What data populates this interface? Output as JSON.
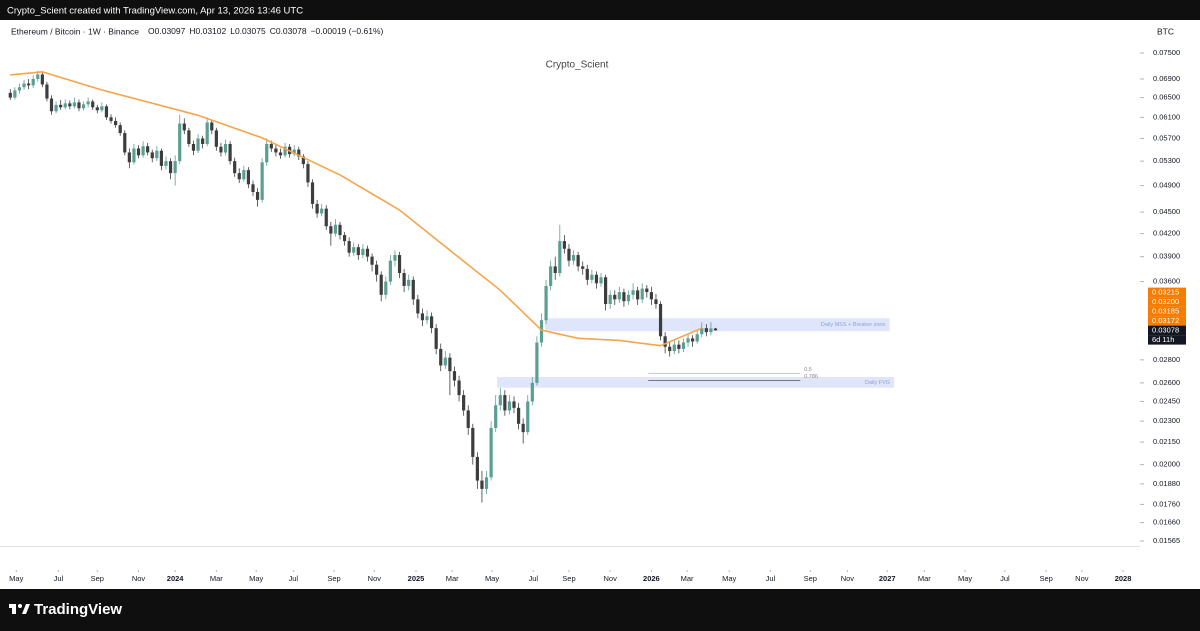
{
  "header": {
    "credit": "Crypto_Scient created with TradingView.com, Apr 13, 2026 13:46 UTC",
    "symbol": "Ethereum / Bitcoin · 1W · Binance",
    "legend": [
      {
        "key": "O",
        "value": "0.03097"
      },
      {
        "key": "H",
        "value": "0.03102"
      },
      {
        "key": "L",
        "value": "0.03075"
      },
      {
        "key": "C",
        "value": "0.03078"
      }
    ],
    "change": "−0.00019 (−0.61%)",
    "currency": "BTC",
    "watermark": "Crypto_Scient"
  },
  "footer": {
    "brand": "TradingView"
  },
  "chart_data": {
    "type": "candlestick",
    "log_scale": true,
    "up_color": "#5b9e92",
    "down_color": "#3d3d3d",
    "xlim": [
      -0.5,
      246.7
    ],
    "xticks": [
      {
        "value": 1.3,
        "label": "May"
      },
      {
        "value": 10.5,
        "label": "Jul"
      },
      {
        "value": 19,
        "label": "Sep"
      },
      {
        "value": 28,
        "label": "Nov"
      },
      {
        "value": 36,
        "label": "2024"
      },
      {
        "value": 45,
        "label": "Mar"
      },
      {
        "value": 53.7,
        "label": "May"
      },
      {
        "value": 61.8,
        "label": "Jul"
      },
      {
        "value": 70.7,
        "label": "Sep"
      },
      {
        "value": 79.5,
        "label": "Nov"
      },
      {
        "value": 88.6,
        "label": "2025"
      },
      {
        "value": 96.5,
        "label": "Mar"
      },
      {
        "value": 105.2,
        "label": "May"
      },
      {
        "value": 114.2,
        "label": "Jul"
      },
      {
        "value": 122,
        "label": "Sep"
      },
      {
        "value": 131,
        "label": "Nov"
      },
      {
        "value": 140,
        "label": "2026"
      },
      {
        "value": 147.8,
        "label": "Mar"
      },
      {
        "value": 157,
        "label": "May"
      },
      {
        "value": 166,
        "label": "Jul"
      },
      {
        "value": 174.7,
        "label": "Sep"
      },
      {
        "value": 182.8,
        "label": "Nov"
      },
      {
        "value": 191.5,
        "label": "2027"
      },
      {
        "value": 199.6,
        "label": "Mar"
      },
      {
        "value": 208.5,
        "label": "May"
      },
      {
        "value": 217.2,
        "label": "Jul"
      },
      {
        "value": 226.2,
        "label": "Sep"
      },
      {
        "value": 234,
        "label": "Nov"
      },
      {
        "value": 243,
        "label": "2028"
      }
    ],
    "ylim": [
      0.0154,
      0.0777
    ],
    "yticks": [
      {
        "value": 0.075,
        "label": "0.07500"
      },
      {
        "value": 0.069,
        "label": "0.06900"
      },
      {
        "value": 0.065,
        "label": "0.06500"
      },
      {
        "value": 0.061,
        "label": "0.06100"
      },
      {
        "value": 0.057,
        "label": "0.05700"
      },
      {
        "value": 0.053,
        "label": "0.05300"
      },
      {
        "value": 0.049,
        "label": "0.04900"
      },
      {
        "value": 0.045,
        "label": "0.04500"
      },
      {
        "value": 0.042,
        "label": "0.04200"
      },
      {
        "value": 0.039,
        "label": "0.03900"
      },
      {
        "value": 0.036,
        "label": "0.03600"
      },
      {
        "value": 0.028,
        "label": "0.02800"
      },
      {
        "value": 0.026,
        "label": "0.02600"
      },
      {
        "value": 0.0245,
        "label": "0.02450"
      },
      {
        "value": 0.023,
        "label": "0.02300"
      },
      {
        "value": 0.0215,
        "label": "0.02150"
      },
      {
        "value": 0.02,
        "label": "0.02000"
      },
      {
        "value": 0.0188,
        "label": "0.01880"
      },
      {
        "value": 0.0176,
        "label": "0.01760"
      },
      {
        "value": 0.0166,
        "label": "0.01660"
      },
      {
        "value": 0.01565,
        "label": "0.01565"
      }
    ],
    "ohlc": [
      [
        0.066,
        0.0668,
        0.0645,
        0.065
      ],
      [
        0.065,
        0.0672,
        0.0646,
        0.0665
      ],
      [
        0.0665,
        0.068,
        0.0658,
        0.0672
      ],
      [
        0.0672,
        0.0688,
        0.0666,
        0.068
      ],
      [
        0.068,
        0.069,
        0.0668,
        0.0676
      ],
      [
        0.0676,
        0.0698,
        0.067,
        0.069
      ],
      [
        0.069,
        0.0708,
        0.0684,
        0.07
      ],
      [
        0.07,
        0.0705,
        0.0672,
        0.0678
      ],
      [
        0.0678,
        0.0684,
        0.0642,
        0.0648
      ],
      [
        0.0648,
        0.0655,
        0.0615,
        0.0622
      ],
      [
        0.0622,
        0.0642,
        0.0618,
        0.0635
      ],
      [
        0.0635,
        0.0645,
        0.0625,
        0.063
      ],
      [
        0.063,
        0.0646,
        0.0626,
        0.0638
      ],
      [
        0.0638,
        0.0644,
        0.0626,
        0.0632
      ],
      [
        0.0632,
        0.065,
        0.0628,
        0.064
      ],
      [
        0.064,
        0.0646,
        0.0622,
        0.0628
      ],
      [
        0.0628,
        0.0642,
        0.0624,
        0.0636
      ],
      [
        0.0636,
        0.065,
        0.063,
        0.0642
      ],
      [
        0.0642,
        0.0646,
        0.0625,
        0.063
      ],
      [
        0.063,
        0.0635,
        0.0618,
        0.0624
      ],
      [
        0.0624,
        0.064,
        0.062,
        0.0632
      ],
      [
        0.0632,
        0.0636,
        0.0605,
        0.061
      ],
      [
        0.061,
        0.0616,
        0.0598,
        0.0603
      ],
      [
        0.0603,
        0.061,
        0.059,
        0.0595
      ],
      [
        0.0595,
        0.06,
        0.0575,
        0.058
      ],
      [
        0.058,
        0.0585,
        0.054,
        0.0545
      ],
      [
        0.0545,
        0.0552,
        0.0518,
        0.0528
      ],
      [
        0.0528,
        0.056,
        0.0524,
        0.0552
      ],
      [
        0.0552,
        0.0558,
        0.0535,
        0.054
      ],
      [
        0.054,
        0.0565,
        0.0536,
        0.0556
      ],
      [
        0.0556,
        0.0562,
        0.054,
        0.0545
      ],
      [
        0.0545,
        0.055,
        0.0528,
        0.0535
      ],
      [
        0.0535,
        0.0556,
        0.053,
        0.0548
      ],
      [
        0.0548,
        0.0552,
        0.0515,
        0.0522
      ],
      [
        0.0522,
        0.0538,
        0.0516,
        0.053
      ],
      [
        0.053,
        0.0535,
        0.05,
        0.051
      ],
      [
        0.051,
        0.054,
        0.049,
        0.053
      ],
      [
        0.053,
        0.0615,
        0.0525,
        0.0598
      ],
      [
        0.0598,
        0.0608,
        0.0578,
        0.0585
      ],
      [
        0.0585,
        0.059,
        0.0555,
        0.056
      ],
      [
        0.056,
        0.0566,
        0.054,
        0.0548
      ],
      [
        0.0548,
        0.0578,
        0.0544,
        0.057
      ],
      [
        0.057,
        0.0575,
        0.0552,
        0.056
      ],
      [
        0.056,
        0.061,
        0.0556,
        0.06
      ],
      [
        0.06,
        0.0606,
        0.0578,
        0.0585
      ],
      [
        0.0585,
        0.059,
        0.0548,
        0.0555
      ],
      [
        0.0555,
        0.0562,
        0.0538,
        0.0545
      ],
      [
        0.0545,
        0.0568,
        0.054,
        0.056
      ],
      [
        0.056,
        0.0565,
        0.0524,
        0.053
      ],
      [
        0.053,
        0.0536,
        0.0504,
        0.051
      ],
      [
        0.051,
        0.0518,
        0.0494,
        0.05
      ],
      [
        0.05,
        0.0522,
        0.0496,
        0.0515
      ],
      [
        0.0515,
        0.052,
        0.0486,
        0.0492
      ],
      [
        0.0492,
        0.0498,
        0.0474,
        0.048
      ],
      [
        0.048,
        0.0486,
        0.0458,
        0.0468
      ],
      [
        0.0468,
        0.0535,
        0.0464,
        0.0528
      ],
      [
        0.0528,
        0.057,
        0.0522,
        0.056
      ],
      [
        0.056,
        0.0566,
        0.0546,
        0.0552
      ],
      [
        0.0552,
        0.0558,
        0.0538,
        0.0545
      ],
      [
        0.0545,
        0.0552,
        0.0534,
        0.054
      ],
      [
        0.054,
        0.0562,
        0.0536,
        0.0555
      ],
      [
        0.0555,
        0.056,
        0.0536,
        0.0542
      ],
      [
        0.0542,
        0.0558,
        0.0538,
        0.055
      ],
      [
        0.055,
        0.0555,
        0.0532,
        0.0538
      ],
      [
        0.0538,
        0.0542,
        0.0518,
        0.0525
      ],
      [
        0.0525,
        0.053,
        0.0488,
        0.0495
      ],
      [
        0.0495,
        0.05,
        0.0455,
        0.0462
      ],
      [
        0.0462,
        0.0468,
        0.0442,
        0.0448
      ],
      [
        0.0448,
        0.0462,
        0.0444,
        0.0455
      ],
      [
        0.0455,
        0.046,
        0.0425,
        0.043
      ],
      [
        0.043,
        0.0436,
        0.0404,
        0.042
      ],
      [
        0.042,
        0.044,
        0.0416,
        0.0432
      ],
      [
        0.0432,
        0.0436,
        0.0412,
        0.0418
      ],
      [
        0.0418,
        0.0422,
        0.0404,
        0.041
      ],
      [
        0.041,
        0.0415,
        0.039,
        0.0395
      ],
      [
        0.0395,
        0.0408,
        0.0391,
        0.0402
      ],
      [
        0.0402,
        0.0406,
        0.0386,
        0.0392
      ],
      [
        0.0392,
        0.0406,
        0.0388,
        0.04
      ],
      [
        0.04,
        0.0404,
        0.0384,
        0.039
      ],
      [
        0.039,
        0.0394,
        0.0372,
        0.038
      ],
      [
        0.038,
        0.0385,
        0.036,
        0.0368
      ],
      [
        0.0368,
        0.0372,
        0.0338,
        0.0345
      ],
      [
        0.0345,
        0.0366,
        0.034,
        0.036
      ],
      [
        0.036,
        0.0392,
        0.0356,
        0.0385
      ],
      [
        0.0385,
        0.0398,
        0.0378,
        0.0392
      ],
      [
        0.0392,
        0.0396,
        0.0364,
        0.037
      ],
      [
        0.037,
        0.0375,
        0.0348,
        0.0355
      ],
      [
        0.0355,
        0.0368,
        0.035,
        0.0362
      ],
      [
        0.0362,
        0.0366,
        0.0334,
        0.034
      ],
      [
        0.034,
        0.0345,
        0.032,
        0.0325
      ],
      [
        0.0325,
        0.033,
        0.0312,
        0.0318
      ],
      [
        0.0318,
        0.0328,
        0.0314,
        0.0322
      ],
      [
        0.0322,
        0.0326,
        0.0305,
        0.031
      ],
      [
        0.031,
        0.0314,
        0.0285,
        0.029
      ],
      [
        0.029,
        0.0295,
        0.027,
        0.0275
      ],
      [
        0.0275,
        0.0288,
        0.0272,
        0.0282
      ],
      [
        0.0282,
        0.0286,
        0.025,
        0.027
      ],
      [
        0.027,
        0.0274,
        0.0257,
        0.0262
      ],
      [
        0.0262,
        0.0266,
        0.0245,
        0.025
      ],
      [
        0.025,
        0.0254,
        0.0234,
        0.0238
      ],
      [
        0.0238,
        0.0242,
        0.022,
        0.0225
      ],
      [
        0.0225,
        0.0228,
        0.02,
        0.0205
      ],
      [
        0.0205,
        0.0208,
        0.0185,
        0.019
      ],
      [
        0.019,
        0.0196,
        0.0177,
        0.0185
      ],
      [
        0.0185,
        0.0196,
        0.0182,
        0.0192
      ],
      [
        0.0192,
        0.023,
        0.019,
        0.0225
      ],
      [
        0.0225,
        0.025,
        0.0222,
        0.0242
      ],
      [
        0.0242,
        0.0256,
        0.0238,
        0.025
      ],
      [
        0.025,
        0.0254,
        0.0234,
        0.0238
      ],
      [
        0.0238,
        0.025,
        0.0235,
        0.0245
      ],
      [
        0.0245,
        0.0249,
        0.0236,
        0.024
      ],
      [
        0.024,
        0.0244,
        0.0224,
        0.0228
      ],
      [
        0.0228,
        0.0232,
        0.0214,
        0.0222
      ],
      [
        0.0222,
        0.025,
        0.022,
        0.0245
      ],
      [
        0.0245,
        0.0265,
        0.0242,
        0.026
      ],
      [
        0.026,
        0.0302,
        0.0258,
        0.0296
      ],
      [
        0.0296,
        0.0325,
        0.0292,
        0.0318
      ],
      [
        0.0318,
        0.0362,
        0.0314,
        0.0355
      ],
      [
        0.0355,
        0.0385,
        0.035,
        0.0378
      ],
      [
        0.0378,
        0.039,
        0.0362,
        0.037
      ],
      [
        0.037,
        0.0432,
        0.0366,
        0.041
      ],
      [
        0.041,
        0.0418,
        0.0394,
        0.04
      ],
      [
        0.04,
        0.0406,
        0.0378,
        0.0385
      ],
      [
        0.0385,
        0.0398,
        0.038,
        0.0392
      ],
      [
        0.0392,
        0.0396,
        0.0372,
        0.0378
      ],
      [
        0.0378,
        0.0384,
        0.0368,
        0.0375
      ],
      [
        0.0375,
        0.038,
        0.0356,
        0.0362
      ],
      [
        0.0362,
        0.0374,
        0.0358,
        0.0368
      ],
      [
        0.0368,
        0.0372,
        0.0352,
        0.0358
      ],
      [
        0.0358,
        0.037,
        0.0354,
        0.0365
      ],
      [
        0.0365,
        0.0368,
        0.0328,
        0.0335
      ],
      [
        0.0335,
        0.035,
        0.033,
        0.0345
      ],
      [
        0.0345,
        0.035,
        0.0334,
        0.034
      ],
      [
        0.034,
        0.0354,
        0.0336,
        0.0348
      ],
      [
        0.0348,
        0.0352,
        0.0332,
        0.0338
      ],
      [
        0.0338,
        0.035,
        0.0334,
        0.0345
      ],
      [
        0.0345,
        0.0358,
        0.034,
        0.035
      ],
      [
        0.035,
        0.0354,
        0.0334,
        0.034
      ],
      [
        0.034,
        0.0358,
        0.0336,
        0.0352
      ],
      [
        0.0352,
        0.0356,
        0.0342,
        0.0348
      ],
      [
        0.0348,
        0.0354,
        0.0334,
        0.034
      ],
      [
        0.034,
        0.0346,
        0.033,
        0.0335
      ],
      [
        0.0335,
        0.0338,
        0.0298,
        0.0302
      ],
      [
        0.0302,
        0.0306,
        0.0286,
        0.0292
      ],
      [
        0.0292,
        0.0296,
        0.0283,
        0.0288
      ],
      [
        0.0288,
        0.0298,
        0.0285,
        0.0294
      ],
      [
        0.0294,
        0.0298,
        0.0286,
        0.029
      ],
      [
        0.029,
        0.03,
        0.0287,
        0.0296
      ],
      [
        0.0296,
        0.0304,
        0.0292,
        0.03
      ],
      [
        0.03,
        0.0303,
        0.0292,
        0.0297
      ],
      [
        0.0297,
        0.0308,
        0.0295,
        0.0304
      ],
      [
        0.0304,
        0.0316,
        0.0301,
        0.031
      ],
      [
        0.031,
        0.0314,
        0.0302,
        0.0306
      ],
      [
        0.0306,
        0.0316,
        0.0303,
        0.03097
      ],
      [
        0.03097,
        0.03102,
        0.03075,
        0.03078
      ]
    ],
    "moving_average": {
      "color": "#f5a54a",
      "x": [
        0,
        7,
        20,
        41,
        55,
        63,
        72,
        85,
        96,
        107,
        116,
        124,
        133,
        142,
        151
      ],
      "values": [
        0.0699,
        0.0706,
        0.0666,
        0.0614,
        0.0571,
        0.054,
        0.0507,
        0.0453,
        0.0398,
        0.035,
        0.0308,
        0.03,
        0.0298,
        0.0293,
        0.031
      ]
    },
    "zones": [
      {
        "label": "Daily MSS + Breaker zone",
        "x": [
          116.8,
          192
        ],
        "y": [
          0.0307,
          0.032
        ],
        "color": "#dfe5fa"
      },
      {
        "label": "Daily FVG",
        "x": [
          106.3,
          193
        ],
        "y": [
          0.0256,
          0.0265
        ],
        "color": "#dfe5fa"
      }
    ],
    "levels": [
      {
        "label": "0.5",
        "value": 0.0268,
        "x": [
          139.3,
          172.5
        ],
        "color": "#f4a6b6"
      },
      {
        "label": "0.786",
        "value": 0.0262,
        "x": [
          139.3,
          172.5
        ],
        "color": "#555555"
      }
    ],
    "price_labels": [
      {
        "value": 0.03215,
        "label": "0.03215",
        "color": "#f57c00"
      },
      {
        "value": 0.032,
        "label": "0.03200",
        "color": "#f57c00"
      },
      {
        "value": 0.03185,
        "label": "0.03185",
        "color": "#f57c00"
      },
      {
        "value": 0.03172,
        "label": "0.03172",
        "color": "#f57c00"
      },
      {
        "value": 0.03078,
        "label": "0.03078",
        "color": "#131722"
      }
    ],
    "countdown": "6d 11h"
  }
}
